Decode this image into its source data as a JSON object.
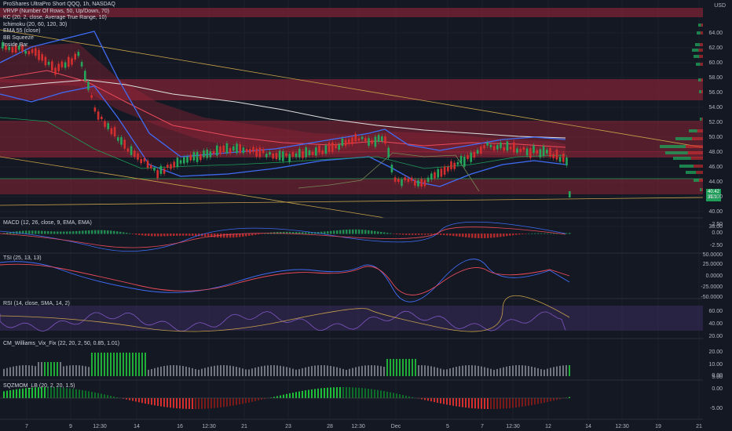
{
  "chart": {
    "title": "ProShares UltraPro Short QQQ, 1h, NASDAQ",
    "indicators": [
      "VRVP (Number Of Rows, 50, Up/Down, 70)",
      "KC (20, 2, close, Average True Range, 10)",
      "Ichimoku (20, 60, 120, 30)",
      "EMA 55 (close)",
      "BB Squeeze",
      "Inside Bar"
    ],
    "currency": "USD",
    "price_tag": [
      "40.42",
      "31.1"
    ]
  },
  "price_axis": [
    "64.00",
    "62.00",
    "60.00",
    "58.00",
    "56.00",
    "54.00",
    "52.00",
    "50.00",
    "48.00",
    "46.00",
    "44.00",
    "42.00",
    "40.00",
    "38.00"
  ],
  "panes": [
    {
      "label": "MACD (12, 26, close, 9, EMA, EMA)",
      "ticks": [
        "2.50",
        "0.00",
        "-2.50"
      ]
    },
    {
      "label": "TSI (25, 13, 13)",
      "ticks": [
        "50.0000",
        "25.0000",
        "0.0000",
        "-25.0000",
        "-50.0000"
      ]
    },
    {
      "label": "RSI (14, close, SMA, 14, 2)",
      "ticks": [
        "60.00",
        "40.00",
        "20.00"
      ]
    },
    {
      "label": "CM_Williams_Vix_Fix (22, 20, 2, 50, 0.85, 1.01)",
      "ticks": [
        "20.00",
        "10.00",
        "0.00"
      ]
    },
    {
      "label": "SQZMOM_LB (20, 2, 20, 1.5)",
      "ticks": [
        "5.00",
        "0.00",
        "-5.00"
      ]
    }
  ],
  "time_axis": [
    "7",
    "9",
    "12:30",
    "14",
    "16",
    "12:30",
    "21",
    "23",
    "28",
    "12:30",
    "Dec",
    "5",
    "7",
    "12:30",
    "12",
    "14",
    "12:30",
    "19",
    "21"
  ],
  "colors": {
    "bg": "#141823",
    "grid": "#1f2430",
    "red": "#d32f2f",
    "green": "#26a65b",
    "blue": "#3f6cf5",
    "yellow": "#c9a24a"
  }
}
